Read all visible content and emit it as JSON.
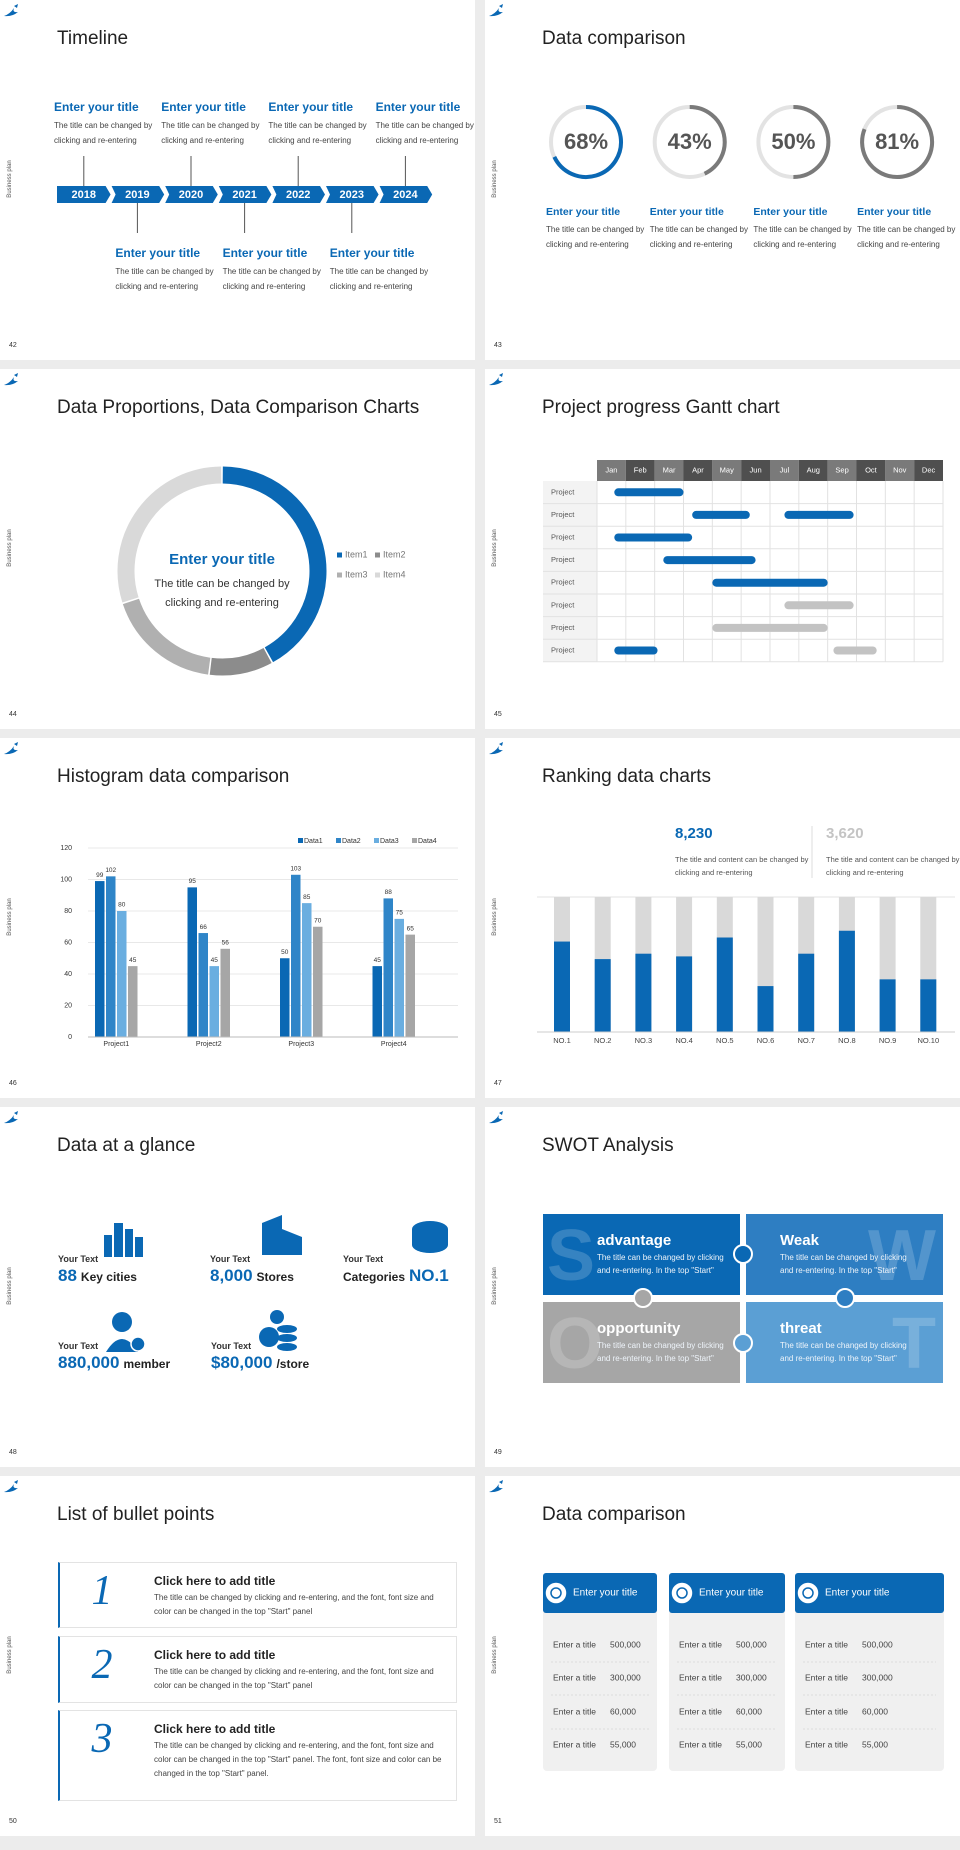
{
  "side_label": "Business plan",
  "slides": [
    {
      "page": 42,
      "title": "Timeline",
      "years": [
        2018,
        2019,
        2020,
        2021,
        2022,
        2023,
        2024
      ],
      "items": [
        {
          "title": "Enter your title",
          "text": "The title can be changed by clicking and re-entering"
        },
        {
          "title": "Enter your title",
          "text": "The title can be changed by clicking and re-entering"
        },
        {
          "title": "Enter your title",
          "text": "The title can be changed by clicking and re-entering"
        },
        {
          "title": "Enter your title",
          "text": "The title can be changed by clicking and re-entering"
        },
        {
          "title": "Enter your title",
          "text": "The title can be changed by clicking and re-entering"
        },
        {
          "title": "Enter your title",
          "text": "The title can be changed by clicking and re-entering"
        },
        {
          "title": "Enter your title",
          "text": "The title can be changed by clicking and re-entering"
        }
      ]
    },
    {
      "page": 43,
      "title": "Data comparison",
      "rings": {
        "values": [
          68,
          43,
          50,
          81
        ],
        "value_labels": [
          "68%",
          "43%",
          "50%",
          "81%"
        ],
        "colors": [
          "#0a68b4",
          "#7a7a7a",
          "#7a7a7a",
          "#7a7a7a"
        ]
      },
      "items": [
        {
          "title": "Enter your title",
          "text": "The title can be changed by clicking and re-entering"
        },
        {
          "title": "Enter your title",
          "text": "The title can be changed by clicking and re-entering"
        },
        {
          "title": "Enter your title",
          "text": "The title can be changed by clicking and re-entering"
        },
        {
          "title": "Enter your title",
          "text": "The title can be changed by clicking and re-entering"
        }
      ]
    },
    {
      "page": 44,
      "title": "Data Proportions, Data Comparison Charts",
      "center_title": "Enter your title",
      "center_text": "The title can be changed by clicking and re-entering",
      "donut": {
        "type": "pie",
        "categories": [
          "Item1",
          "Item2",
          "Item3",
          "Item4"
        ],
        "values": [
          42,
          10,
          18,
          30
        ],
        "colors": [
          "#0a68b4",
          "#8c8c8c",
          "#b0b0b0",
          "#d9d9d9"
        ]
      }
    },
    {
      "page": 45,
      "title": "Project progress Gantt chart",
      "months": [
        "Jan",
        "Feb",
        "Mar",
        "Apr",
        "May",
        "Jun",
        "Jul",
        "Aug",
        "Sep",
        "Oct",
        "Nov",
        "Dec"
      ],
      "xlim": [
        0,
        12
      ],
      "rows": [
        {
          "label": "Project",
          "bars": [
            {
              "start": 0.6,
              "end": 3.0,
              "color": "#0a68b4"
            }
          ]
        },
        {
          "label": "Project",
          "bars": [
            {
              "start": 3.3,
              "end": 5.3,
              "color": "#0a68b4"
            },
            {
              "start": 6.5,
              "end": 8.9,
              "color": "#0a68b4"
            }
          ]
        },
        {
          "label": "Project",
          "bars": [
            {
              "start": 0.6,
              "end": 3.3,
              "color": "#0a68b4"
            }
          ]
        },
        {
          "label": "Project",
          "bars": [
            {
              "start": 2.3,
              "end": 5.5,
              "color": "#0a68b4"
            }
          ]
        },
        {
          "label": "Project",
          "bars": [
            {
              "start": 4.0,
              "end": 8.0,
              "color": "#0a68b4"
            }
          ]
        },
        {
          "label": "Project",
          "bars": [
            {
              "start": 6.5,
              "end": 8.9,
              "color": "#c3c3c3"
            }
          ]
        },
        {
          "label": "Project",
          "bars": [
            {
              "start": 4.0,
              "end": 8.0,
              "color": "#c3c3c3"
            }
          ]
        },
        {
          "label": "Project",
          "bars": [
            {
              "start": 0.6,
              "end": 2.1,
              "color": "#0a68b4"
            },
            {
              "start": 8.2,
              "end": 9.7,
              "color": "#c3c3c3"
            }
          ]
        }
      ]
    },
    {
      "page": 46,
      "title": "Histogram data comparison",
      "chart": {
        "type": "bar",
        "categories": [
          "Project1",
          "Project2",
          "Project3",
          "Project4"
        ],
        "series": [
          {
            "name": "Data1",
            "color": "#0a68b4",
            "values": [
              99,
              95,
              50,
              45
            ]
          },
          {
            "name": "Data2",
            "color": "#2f85c8",
            "values": [
              102,
              66,
              103,
              88
            ]
          },
          {
            "name": "Data3",
            "color": "#6aaee0",
            "values": [
              80,
              45,
              85,
              75
            ]
          },
          {
            "name": "Data4",
            "color": "#a6a6a6",
            "values": [
              45,
              56,
              70,
              65
            ]
          }
        ],
        "ylim": [
          0,
          120
        ],
        "yticks": [
          0,
          20,
          40,
          60,
          80,
          100,
          120
        ],
        "grid": true
      }
    },
    {
      "page": 47,
      "title": "Ranking data charts",
      "stats": [
        {
          "value": "8,230",
          "text": "The title and content can be changed by clicking and re-entering",
          "color": "#0a68b4"
        },
        {
          "value": "3,620",
          "text": "The title and content can be changed by clicking and re-entering",
          "color": "#c4c4c4"
        }
      ],
      "chart": {
        "type": "bar",
        "categories": [
          "NO.1",
          "NO.2",
          "NO.3",
          "NO.4",
          "NO.5",
          "NO.6",
          "NO.7",
          "NO.8",
          "NO.9",
          "NO.10"
        ],
        "values": [
          67,
          54,
          58,
          56,
          70,
          34,
          58,
          75,
          39,
          39
        ],
        "ylim": [
          0,
          100
        ],
        "color": "#0a68b4",
        "track_color": "#d9d9d9"
      }
    },
    {
      "page": 48,
      "title": "Data at a glance",
      "items": [
        {
          "label": "Your Text",
          "value": "88",
          "unit": "Key cities"
        },
        {
          "label": "Your Text",
          "value": "8,000",
          "unit": "Stores"
        },
        {
          "label": "Your Text",
          "unit": "Categories",
          "value": "NO.1"
        },
        {
          "label": "Your Text",
          "value": "880,000",
          "unit": "member"
        },
        {
          "label": "Your Text",
          "value": "$80,000",
          "unit": "/store"
        }
      ]
    },
    {
      "page": 49,
      "title": "SWOT Analysis",
      "quadrants": [
        {
          "letter": "S",
          "title": "advantage",
          "text": "The title can be changed by clicking and re-entering. In the top \"Start\"",
          "color": "#0a68b4"
        },
        {
          "letter": "W",
          "title": "Weak",
          "text": "The title can be changed by clicking and re-entering. In the top \"Start\"",
          "color": "#2e7ec2"
        },
        {
          "letter": "O",
          "title": "opportunity",
          "text": "The title can be changed by clicking and re-entering. In the top \"Start\"",
          "color": "#a6a6a6"
        },
        {
          "letter": "T",
          "title": "threat",
          "text": "The title can be changed by clicking and re-entering. In the top \"Start\"",
          "color": "#5b9fd4"
        }
      ]
    },
    {
      "page": 50,
      "title": "List of bullet points",
      "bullets": [
        {
          "number": "1",
          "title": "Click here to add title",
          "text": "The title can be changed by clicking and re-entering, and the font, font size and color can be changed in the top \"Start\" panel"
        },
        {
          "number": "2",
          "title": "Click here to add title",
          "text": "The title can be changed by clicking and re-entering, and the font, font size and color can be changed in the top \"Start\" panel"
        },
        {
          "number": "3",
          "title": "Click here to add title",
          "text": "The title can be changed by clicking and re-entering, and the font, font size and color can be changed in the top \"Start\" panel. The font, font size and color can be changed in the top \"Start\" panel."
        }
      ]
    },
    {
      "page": 51,
      "title": "Data comparison",
      "cards": [
        {
          "title": "Enter your title",
          "rows": [
            [
              "Enter a title",
              "500,000"
            ],
            [
              "Enter a title",
              "300,000"
            ],
            [
              "Enter a title",
              "60,000"
            ],
            [
              "Enter a title",
              "55,000"
            ]
          ]
        },
        {
          "title": "Enter your title",
          "rows": [
            [
              "Enter a title",
              "500,000"
            ],
            [
              "Enter a title",
              "300,000"
            ],
            [
              "Enter a title",
              "60,000"
            ],
            [
              "Enter a title",
              "55,000"
            ]
          ]
        },
        {
          "title": "Enter your title",
          "rows": [
            [
              "Enter a title",
              "500,000"
            ],
            [
              "Enter a title",
              "300,000"
            ],
            [
              "Enter a title",
              "60,000"
            ],
            [
              "Enter a title",
              "55,000"
            ]
          ]
        }
      ]
    }
  ]
}
